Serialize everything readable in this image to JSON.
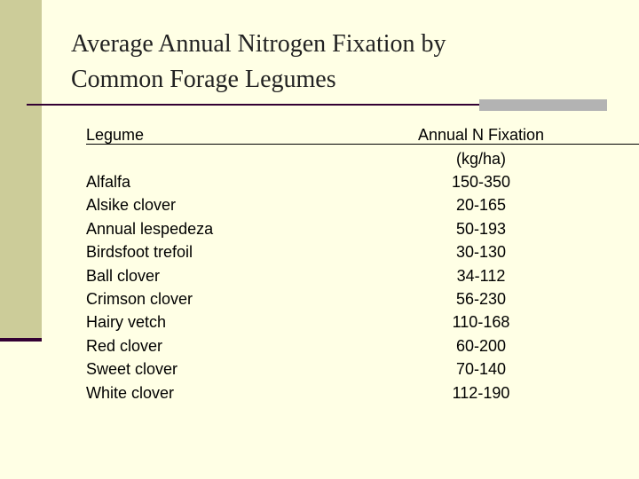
{
  "header": {
    "title": "Average Annual Nitrogen Fixation by Common Forage Legumes"
  },
  "table": {
    "columns": [
      "Legume",
      "Annual N Fixation"
    ],
    "unit": "(kg/ha)",
    "rows": [
      [
        "Alfalfa",
        "150-350"
      ],
      [
        "Alsike clover",
        "20-165"
      ],
      [
        "Annual lespedeza",
        "50-193"
      ],
      [
        "Birdsfoot trefoil",
        "30-130"
      ],
      [
        "Ball clover",
        "34-112"
      ],
      [
        "Crimson clover",
        "56-230"
      ],
      [
        "Hairy vetch",
        "110-168"
      ],
      [
        "Red clover",
        "60-200"
      ],
      [
        "Sweet clover",
        "70-140"
      ],
      [
        "White clover",
        "112-190"
      ]
    ]
  }
}
